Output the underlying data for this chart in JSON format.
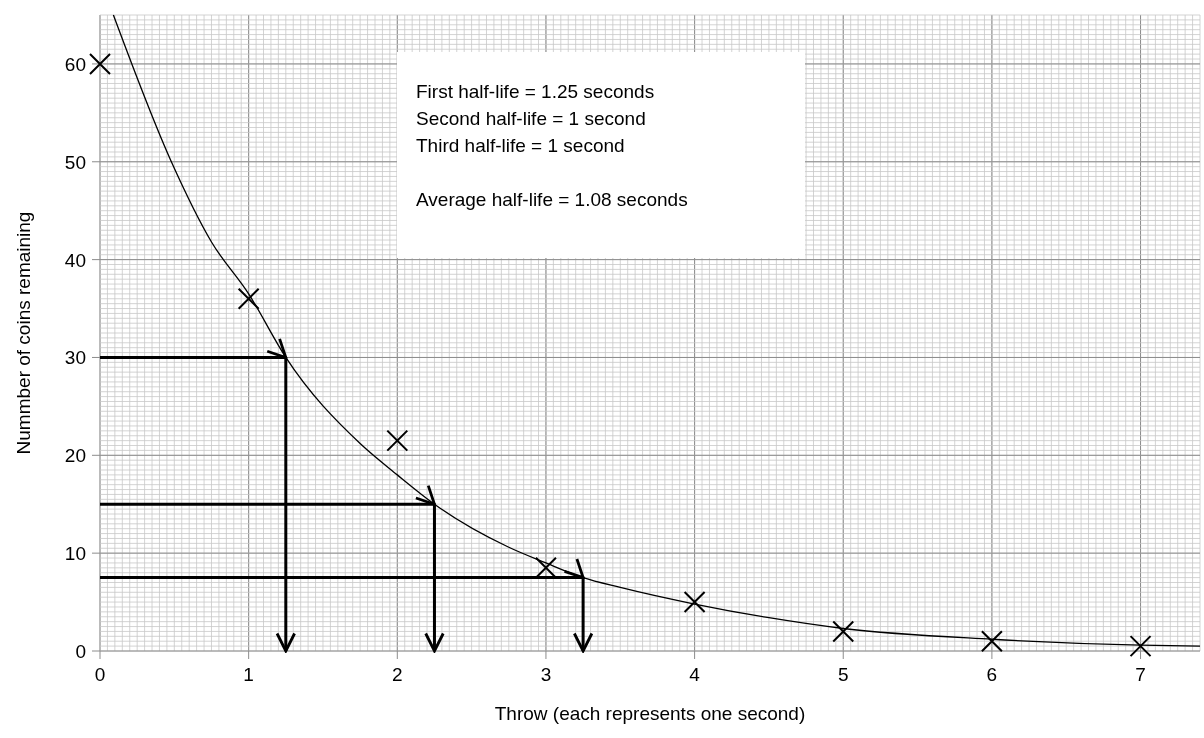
{
  "chart_data": {
    "type": "scatter",
    "xlabel": "Throw (each represents one second)",
    "ylabel": "Nummber of coins remaining",
    "xlim": [
      0,
      7.4
    ],
    "ylim": [
      0,
      65
    ],
    "xticks": [
      0,
      1,
      2,
      3,
      4,
      5,
      6,
      7
    ],
    "yticks": [
      0,
      10,
      20,
      30,
      40,
      50,
      60
    ],
    "grid": true,
    "annotations": [
      "First half-life = 1.25 seconds\nSecond half-life = 1 second\nThird half-life = 1 second\n\nAverage half-life = 1.08 seconds"
    ],
    "series": [
      {
        "type": "line",
        "color": "#000000",
        "marker": "none",
        "x": [
          0.09,
          0.48,
          0.75,
          1,
          1.25,
          1.75,
          2,
          2.25,
          2.75,
          3,
          3.25,
          3.5,
          4,
          4.5,
          5,
          6,
          7,
          7.4
        ],
        "values": [
          65,
          50,
          41.8,
          36.5,
          30,
          21.2,
          18,
          15,
          10.6,
          9,
          7.5,
          6.5,
          4.8,
          3.4,
          2.3,
          1.2,
          0.6,
          0.5
        ]
      },
      {
        "color": "#000000",
        "marker": "cross",
        "x": [
          0,
          1,
          2,
          3,
          4,
          5,
          6,
          7
        ],
        "values": [
          60,
          36,
          21.5,
          8.5,
          5,
          2,
          1,
          0.5
        ]
      },
      {
        "type": "line",
        "color": "#000000",
        "x": [
          0,
          1.25,
          1.25
        ],
        "values": [
          30,
          30,
          0
        ]
      },
      {
        "type": "line",
        "color": "#000000",
        "x": [
          0,
          2.25,
          2.25
        ],
        "values": [
          15,
          15,
          0
        ]
      },
      {
        "type": "line",
        "color": "#000000",
        "x": [
          0,
          3.25,
          3.25
        ],
        "values": [
          7.5,
          7.5,
          0
        ]
      }
    ]
  }
}
